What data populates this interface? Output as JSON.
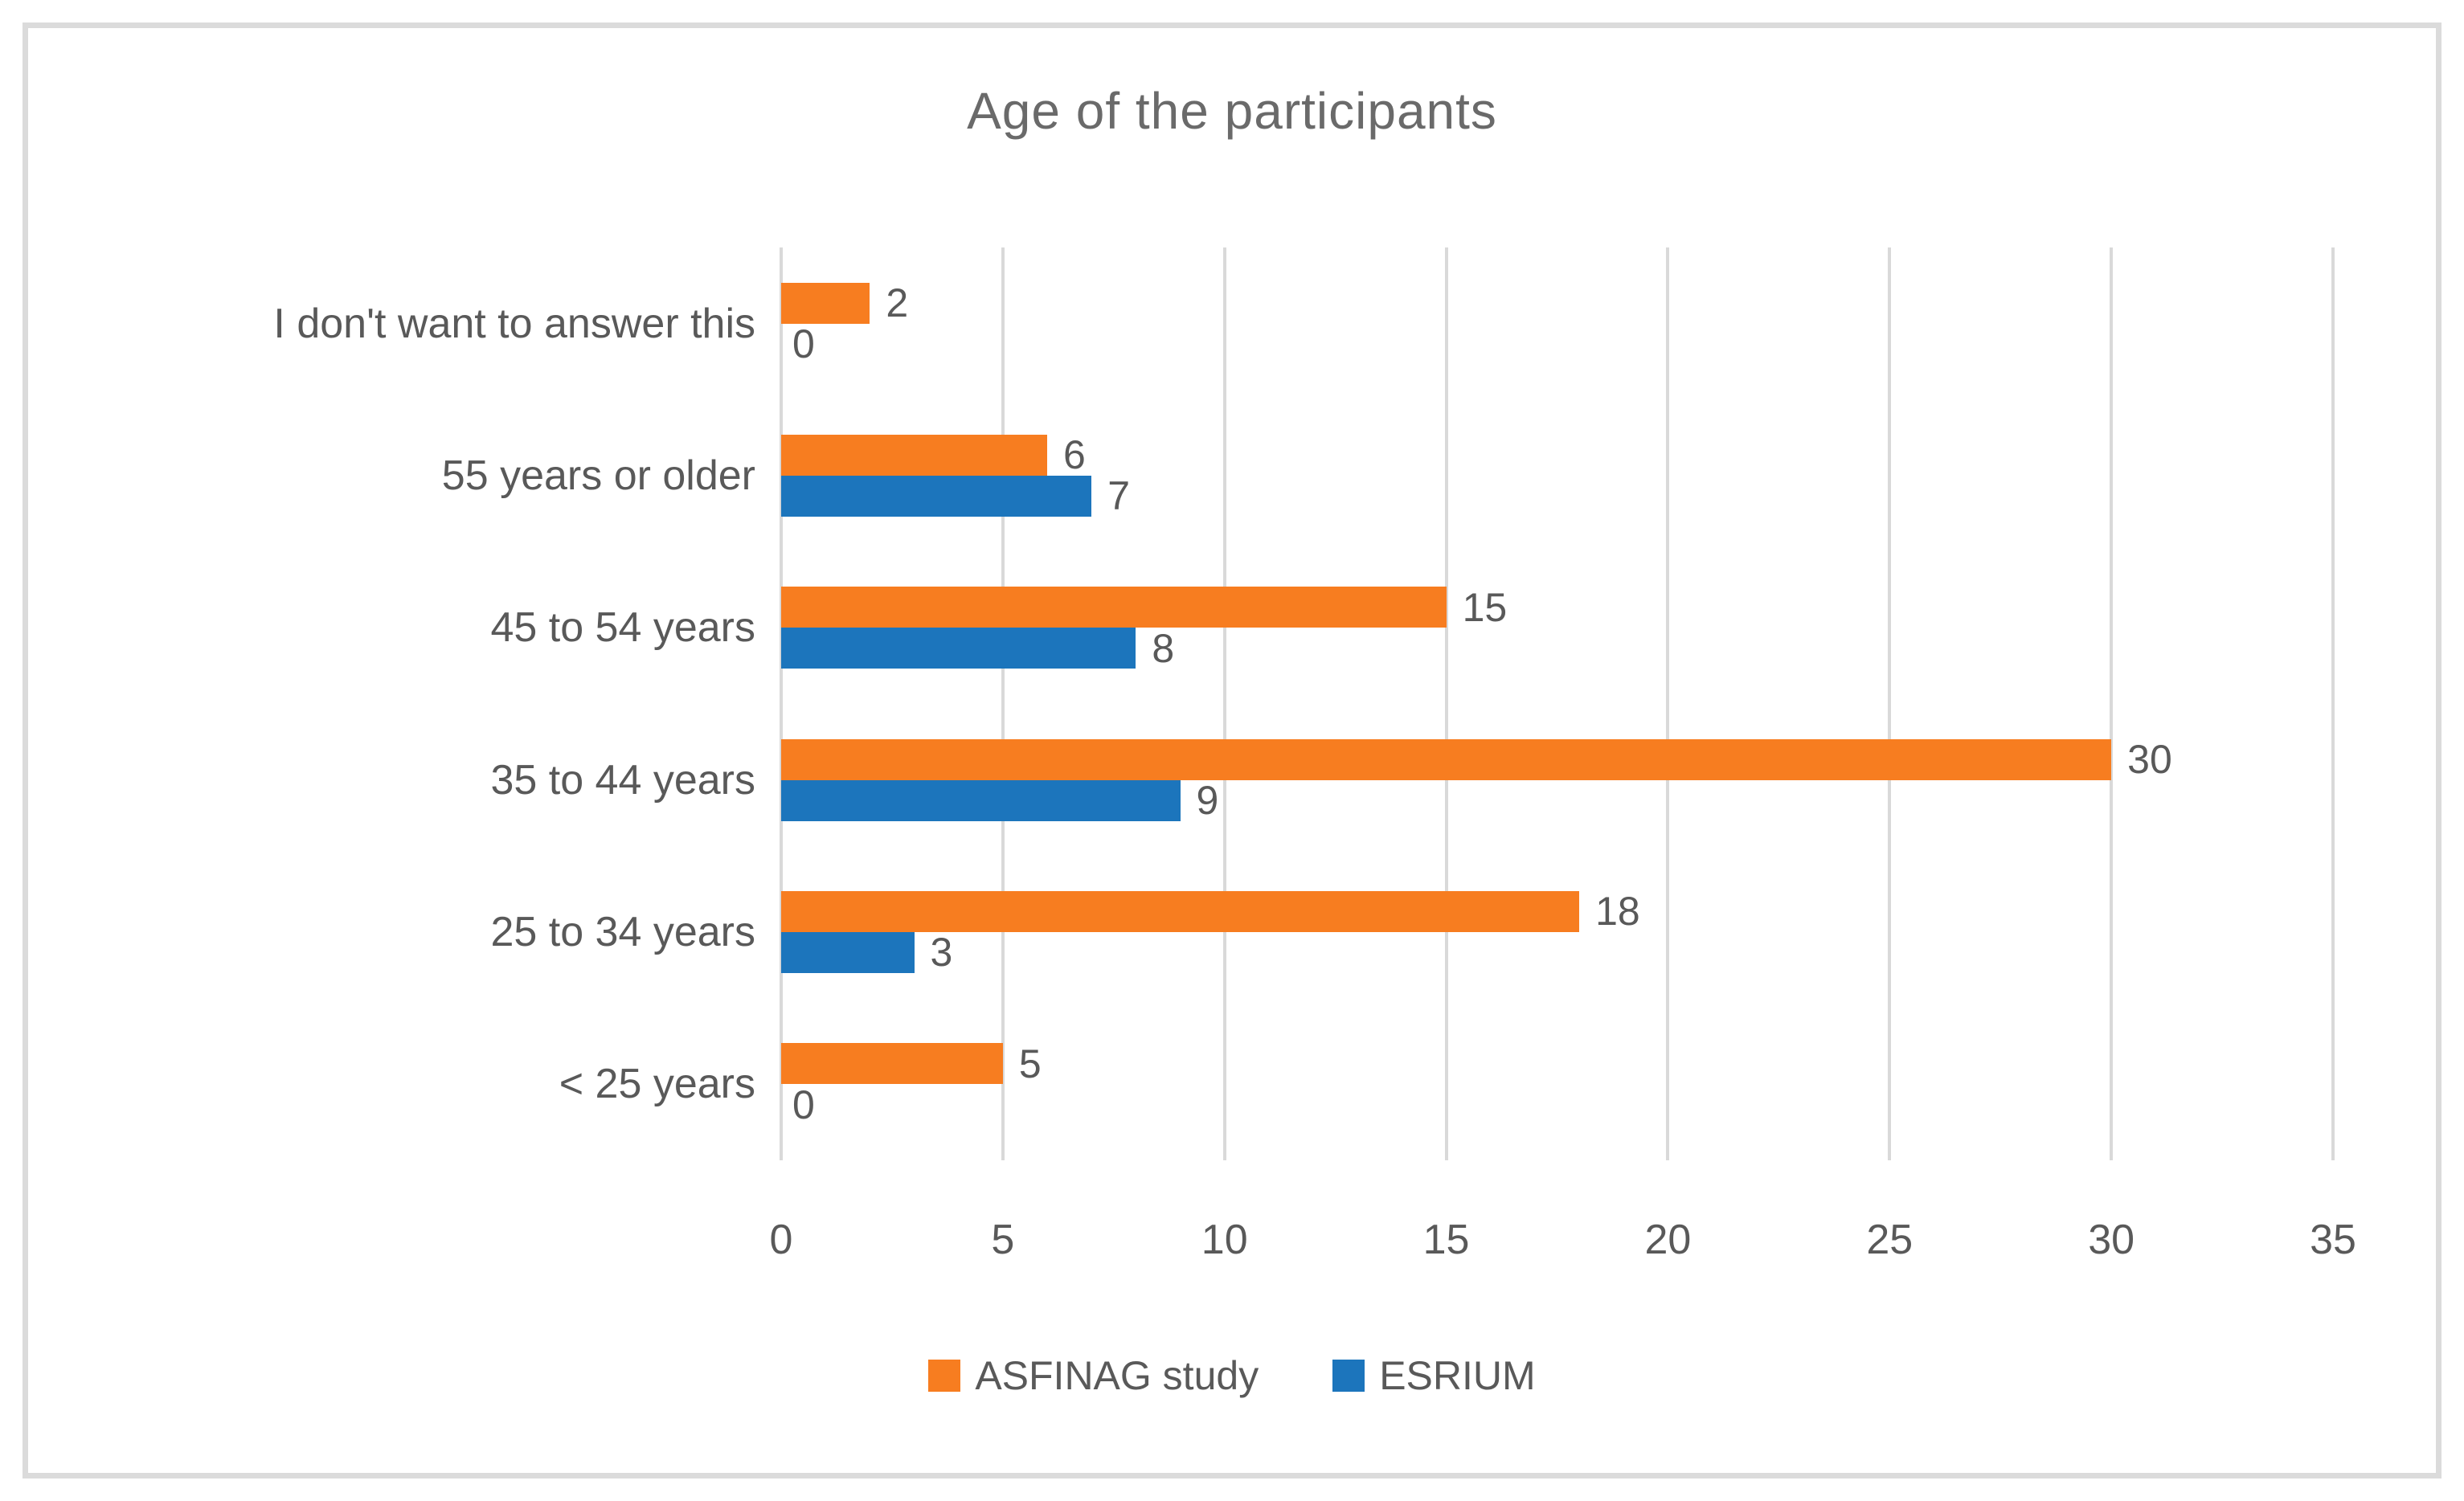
{
  "chart_data": {
    "type": "bar",
    "orientation": "horizontal",
    "title": "Age of the participants",
    "categories": [
      "I don't want to answer this",
      "55 years or older",
      "45 to 54 years",
      "35 to 44 years",
      "25 to 34 years",
      "< 25 years"
    ],
    "series": [
      {
        "name": "ASFINAG study",
        "color": "#f77d20",
        "values": [
          2,
          6,
          15,
          30,
          18,
          5
        ]
      },
      {
        "name": "ESRIUM",
        "color": "#1c75bc",
        "values": [
          0,
          7,
          8,
          9,
          3,
          0
        ]
      }
    ],
    "xlim": [
      0,
      35
    ],
    "xticks": [
      0,
      5,
      10,
      15,
      20,
      25,
      30,
      35
    ],
    "grid": true,
    "value_labels": true,
    "legend_position": "bottom",
    "text_color": "#595959",
    "gridline_color": "#d9d9d9"
  }
}
